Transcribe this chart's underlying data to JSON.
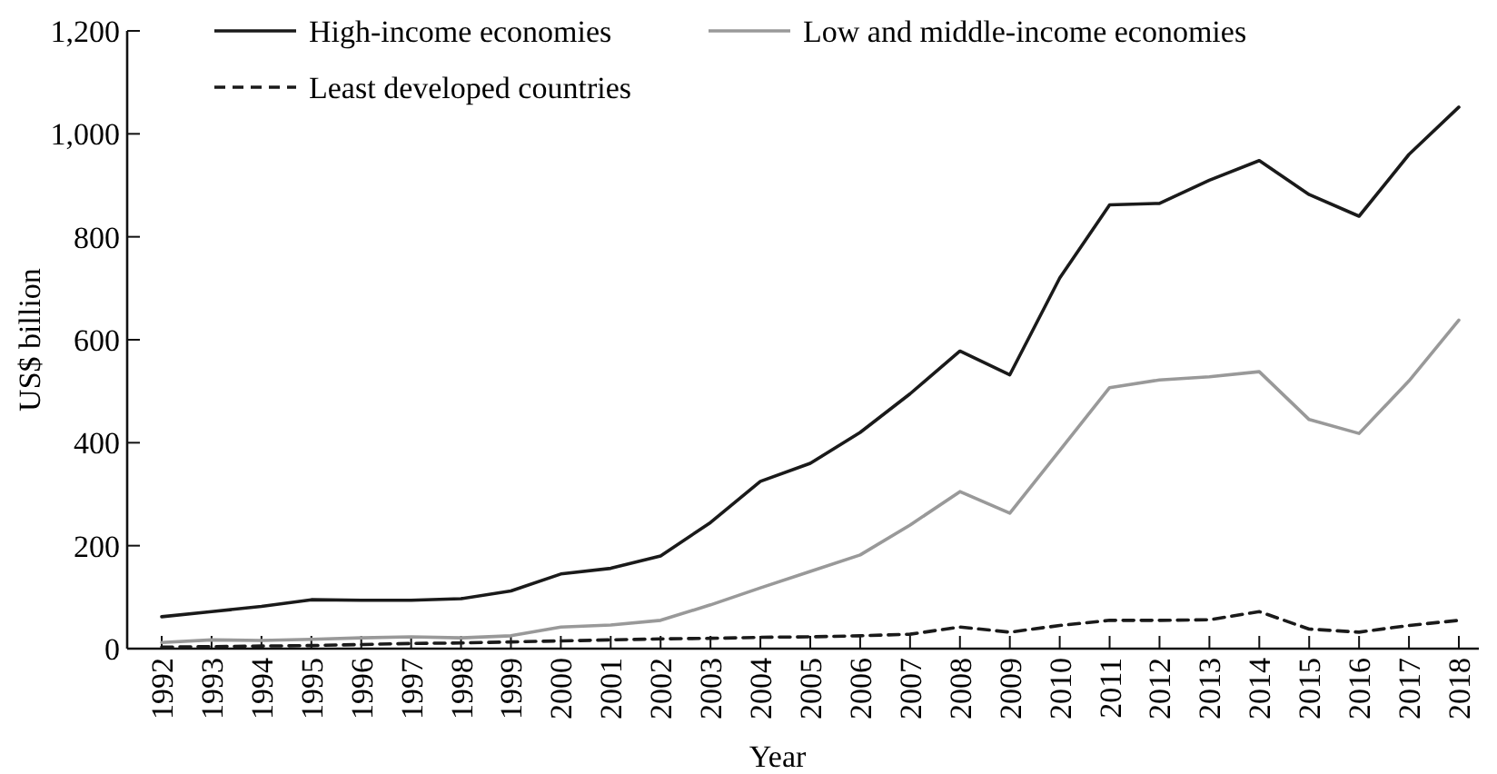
{
  "chart_data": {
    "type": "line",
    "xlabel": "Year",
    "ylabel": "US$ billion",
    "categories": [
      "1992",
      "1993",
      "1994",
      "1995",
      "1996",
      "1997",
      "1998",
      "1999",
      "2000",
      "2001",
      "2002",
      "2003",
      "2004",
      "2005",
      "2006",
      "2007",
      "2008",
      "2009",
      "2010",
      "2011",
      "2012",
      "2013",
      "2014",
      "2015",
      "2016",
      "2017",
      "2018"
    ],
    "series": [
      {
        "name": "High-income economies",
        "color": "#1a1a1a",
        "line_style": "solid",
        "values": [
          62,
          72,
          82,
          95,
          94,
          94,
          97,
          112,
          145,
          156,
          180,
          245,
          325,
          360,
          420,
          495,
          578,
          532,
          720,
          862,
          865,
          910,
          948,
          882,
          840,
          960,
          1052
        ]
      },
      {
        "name": "Low and middle-income economies",
        "color": "#999999",
        "line_style": "solid",
        "values": [
          12,
          17,
          16,
          18,
          21,
          23,
          21,
          25,
          42,
          46,
          55,
          85,
          118,
          150,
          182,
          240,
          305,
          263,
          385,
          507,
          522,
          528,
          538,
          445,
          418,
          520,
          638
        ]
      },
      {
        "name": "Least developed countries",
        "color": "#1a1a1a",
        "line_style": "dashed",
        "values": [
          3,
          4,
          5,
          6,
          8,
          10,
          11,
          13,
          15,
          17,
          19,
          20,
          22,
          23,
          25,
          28,
          42,
          32,
          45,
          55,
          55,
          56,
          72,
          38,
          32,
          45,
          55
        ]
      }
    ],
    "ylim": [
      0,
      1200
    ],
    "yticks": [
      0,
      200,
      400,
      600,
      800,
      {
        "value": 1000,
        "label": "1,000"
      },
      {
        "value": 1200,
        "label": "1,200"
      }
    ],
    "grid": false,
    "legend": "top",
    "marker": "none"
  }
}
